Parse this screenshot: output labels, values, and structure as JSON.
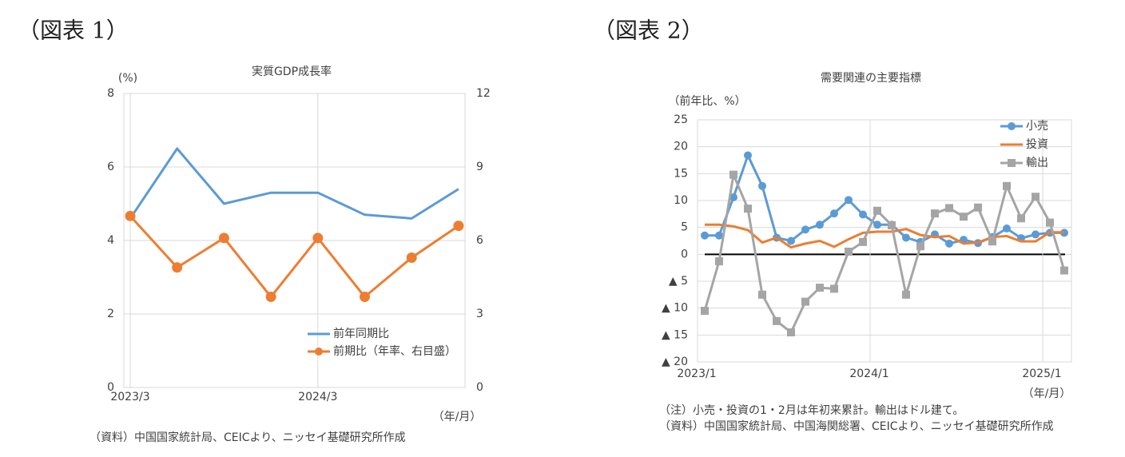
{
  "chart_data": [
    {
      "type": "line",
      "figure_label": "（図表 1）",
      "title": "実質GDP成長率",
      "y_label": "(%)",
      "x_unit_label": "（年/月）",
      "notes": [
        "（資料）中国国家統計局、CEICより、ニッセイ基礎研究所作成"
      ],
      "categories": [
        "2023/3",
        null,
        null,
        null,
        "2024/3",
        null,
        null,
        null
      ],
      "ylim": [
        0,
        8
      ],
      "yticks": [
        0,
        2,
        4,
        6,
        8
      ],
      "y2lim": [
        0,
        12
      ],
      "y2ticks": [
        0,
        3,
        6,
        9,
        12
      ],
      "grid": true,
      "legend": "lower right",
      "series": [
        {
          "name": "前年同期比",
          "color": "#5b9bd5",
          "marker": "none",
          "values": [
            4.6,
            6.5,
            5.0,
            5.3,
            5.3,
            4.7,
            4.6,
            5.4
          ]
        },
        {
          "name": "前期比（年率、右目盛）",
          "color": "#ed7d31",
          "marker": "circle",
          "axis": "y2",
          "values": [
            7.0,
            4.9,
            6.1,
            3.7,
            6.1,
            3.7,
            5.3,
            6.6
          ]
        }
      ]
    },
    {
      "type": "line",
      "figure_label": "（図表 2）",
      "title": "需要関連の主要指標",
      "y_label": "（前年比、%）",
      "x_unit_label": "（年/月）",
      "notes": [
        "（注）小売・投資の1・2月は年初来累計。輸出はドル建て。",
        "（資料）中国国家統計局、中国海関総署、CEICより、ニッセイ基礎研究所作成"
      ],
      "categories": [
        "2023/1",
        null,
        null,
        null,
        null,
        null,
        null,
        null,
        null,
        null,
        null,
        null,
        "2024/1",
        null,
        null,
        null,
        null,
        null,
        null,
        null,
        null,
        null,
        null,
        null,
        "2025/1",
        null
      ],
      "ylim": [
        -20,
        25
      ],
      "yticks": [
        {
          "value": -20,
          "label": "▲ 20"
        },
        {
          "value": -15,
          "label": "▲ 15"
        },
        {
          "value": -10,
          "label": "▲ 10"
        },
        {
          "value": -5,
          "label": "▲ 5"
        },
        0,
        5,
        10,
        15,
        20,
        25
      ],
      "grid": true,
      "zero_line": true,
      "legend": "upper right",
      "series": [
        {
          "name": "小売",
          "color": "#5b9bd5",
          "marker": "circle",
          "values": [
            3.5,
            3.5,
            10.6,
            18.4,
            12.7,
            3.1,
            2.5,
            4.6,
            5.5,
            7.6,
            10.1,
            7.4,
            5.5,
            5.5,
            3.1,
            2.3,
            3.7,
            2.0,
            2.7,
            2.1,
            3.2,
            4.8,
            3.0,
            3.7,
            4.0,
            4.0
          ]
        },
        {
          "name": "投資",
          "color": "#ed7d31",
          "marker": "none",
          "values": [
            5.5,
            5.5,
            5.2,
            4.5,
            2.2,
            3.1,
            1.3,
            2.0,
            2.5,
            1.4,
            2.8,
            4.0,
            4.2,
            4.2,
            4.7,
            3.6,
            3.2,
            3.4,
            2.0,
            2.2,
            3.2,
            3.4,
            2.4,
            2.4,
            4.1,
            4.1
          ]
        },
        {
          "name": "輸出",
          "color": "#a5a5a5",
          "marker": "square",
          "values": [
            -10.5,
            -1.3,
            14.8,
            8.5,
            -7.5,
            -12.4,
            -14.5,
            -8.8,
            -6.2,
            -6.4,
            0.5,
            2.3,
            8.1,
            5.4,
            -7.5,
            1.5,
            7.6,
            8.6,
            7.0,
            8.7,
            2.4,
            12.7,
            6.7,
            10.7,
            5.9,
            -3.0
          ]
        }
      ]
    }
  ]
}
